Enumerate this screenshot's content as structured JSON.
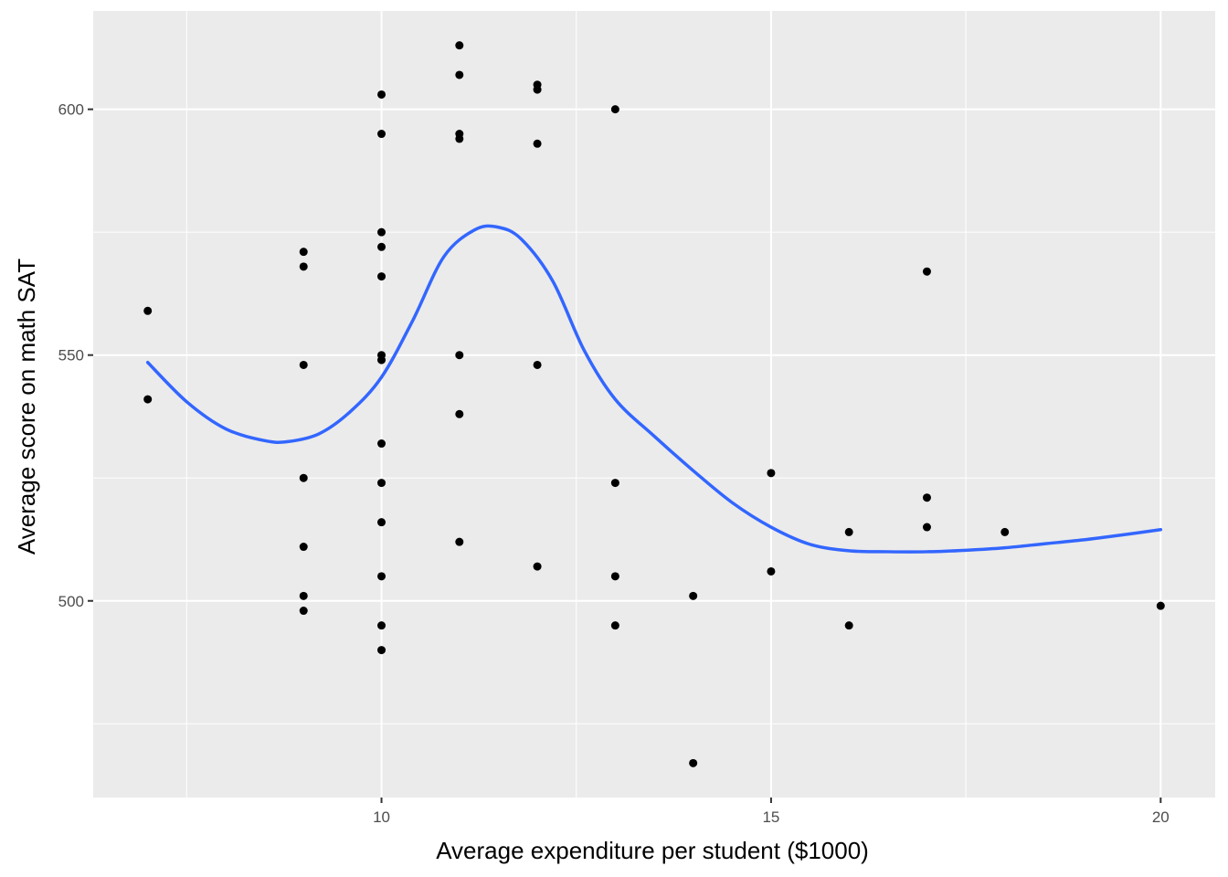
{
  "chart_data": {
    "type": "scatter",
    "title": "",
    "xlabel": "Average expenditure per student ($1000)",
    "ylabel": "Average score on math SAT",
    "xlim": [
      6.3,
      20.7
    ],
    "ylim": [
      460,
      620
    ],
    "x_ticks": [
      10,
      15,
      20
    ],
    "x_tick_labels": [
      "10",
      "15",
      "20"
    ],
    "x_minor_ticks": [
      7.5,
      12.5,
      17.5
    ],
    "y_ticks": [
      500,
      550,
      600
    ],
    "y_tick_labels": [
      "500",
      "550",
      "600"
    ],
    "y_minor_ticks": [
      475,
      525,
      575
    ],
    "grid": true,
    "panel_background": "#ebebeb",
    "grid_color": "#ffffff",
    "point_color": "#000000",
    "smooth_color": "#3366ff",
    "points": [
      {
        "x": 7,
        "y": 559
      },
      {
        "x": 7,
        "y": 541
      },
      {
        "x": 9,
        "y": 571
      },
      {
        "x": 9,
        "y": 568
      },
      {
        "x": 9,
        "y": 548
      },
      {
        "x": 9,
        "y": 525
      },
      {
        "x": 9,
        "y": 511
      },
      {
        "x": 9,
        "y": 501
      },
      {
        "x": 9,
        "y": 498
      },
      {
        "x": 10,
        "y": 603
      },
      {
        "x": 10,
        "y": 595
      },
      {
        "x": 10,
        "y": 575
      },
      {
        "x": 10,
        "y": 572
      },
      {
        "x": 10,
        "y": 566
      },
      {
        "x": 10,
        "y": 550
      },
      {
        "x": 10,
        "y": 549
      },
      {
        "x": 10,
        "y": 532
      },
      {
        "x": 10,
        "y": 524
      },
      {
        "x": 10,
        "y": 516
      },
      {
        "x": 10,
        "y": 505
      },
      {
        "x": 10,
        "y": 495
      },
      {
        "x": 10,
        "y": 490
      },
      {
        "x": 11,
        "y": 613
      },
      {
        "x": 11,
        "y": 607
      },
      {
        "x": 11,
        "y": 595
      },
      {
        "x": 11,
        "y": 594
      },
      {
        "x": 11,
        "y": 550
      },
      {
        "x": 11,
        "y": 538
      },
      {
        "x": 11,
        "y": 512
      },
      {
        "x": 12,
        "y": 605
      },
      {
        "x": 12,
        "y": 604
      },
      {
        "x": 12,
        "y": 593
      },
      {
        "x": 12,
        "y": 548
      },
      {
        "x": 12,
        "y": 507
      },
      {
        "x": 13,
        "y": 600
      },
      {
        "x": 13,
        "y": 524
      },
      {
        "x": 13,
        "y": 505
      },
      {
        "x": 13,
        "y": 495
      },
      {
        "x": 14,
        "y": 501
      },
      {
        "x": 14,
        "y": 467
      },
      {
        "x": 15,
        "y": 526
      },
      {
        "x": 15,
        "y": 506
      },
      {
        "x": 16,
        "y": 514
      },
      {
        "x": 16,
        "y": 495
      },
      {
        "x": 17,
        "y": 567
      },
      {
        "x": 17,
        "y": 521
      },
      {
        "x": 17,
        "y": 515
      },
      {
        "x": 18,
        "y": 514
      },
      {
        "x": 20,
        "y": 499
      }
    ],
    "smooth_line": [
      {
        "x": 7.0,
        "y": 548.5
      },
      {
        "x": 7.5,
        "y": 540.5
      },
      {
        "x": 8.0,
        "y": 535.0
      },
      {
        "x": 8.5,
        "y": 532.6
      },
      {
        "x": 8.8,
        "y": 532.4
      },
      {
        "x": 9.2,
        "y": 534.0
      },
      {
        "x": 9.6,
        "y": 538.5
      },
      {
        "x": 10.0,
        "y": 545.5
      },
      {
        "x": 10.4,
        "y": 557.0
      },
      {
        "x": 10.8,
        "y": 570.0
      },
      {
        "x": 11.2,
        "y": 575.5
      },
      {
        "x": 11.5,
        "y": 576.0
      },
      {
        "x": 11.8,
        "y": 573.5
      },
      {
        "x": 12.2,
        "y": 565.0
      },
      {
        "x": 12.6,
        "y": 551.0
      },
      {
        "x": 13.0,
        "y": 541.0
      },
      {
        "x": 13.5,
        "y": 533.5
      },
      {
        "x": 14.0,
        "y": 526.5
      },
      {
        "x": 14.5,
        "y": 520.0
      },
      {
        "x": 15.0,
        "y": 515.0
      },
      {
        "x": 15.5,
        "y": 511.5
      },
      {
        "x": 16.0,
        "y": 510.2
      },
      {
        "x": 16.5,
        "y": 510.0
      },
      {
        "x": 17.0,
        "y": 510.0
      },
      {
        "x": 17.5,
        "y": 510.3
      },
      {
        "x": 18.0,
        "y": 510.8
      },
      {
        "x": 18.5,
        "y": 511.6
      },
      {
        "x": 19.0,
        "y": 512.4
      },
      {
        "x": 19.5,
        "y": 513.4
      },
      {
        "x": 20.0,
        "y": 514.5
      }
    ]
  }
}
